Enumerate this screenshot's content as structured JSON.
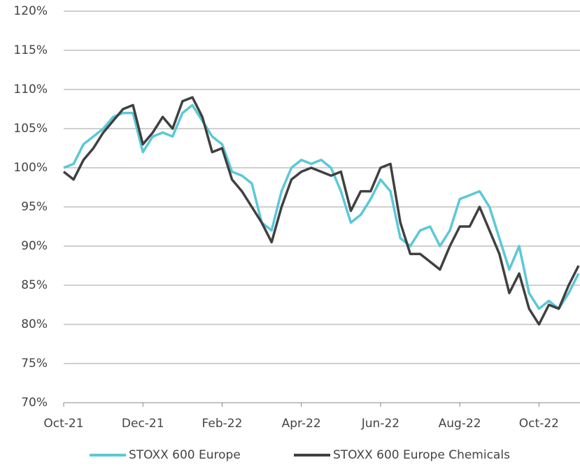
{
  "chart_data": {
    "type": "line",
    "categories": [
      "Oct-21",
      null,
      null,
      null,
      null,
      null,
      null,
      null,
      "Dec-21",
      null,
      null,
      null,
      null,
      null,
      null,
      null,
      "Feb-22",
      null,
      null,
      null,
      null,
      null,
      null,
      null,
      "Apr-22",
      null,
      null,
      null,
      null,
      null,
      null,
      null,
      "Jun-22",
      null,
      null,
      null,
      null,
      null,
      null,
      null,
      "Aug-22",
      null,
      null,
      null,
      null,
      null,
      null,
      null,
      "Oct-22",
      null,
      null,
      null,
      null
    ],
    "series": [
      {
        "name": "STOXX 600 Europe",
        "color": "#5bc8d8",
        "values": [
          100,
          100.5,
          103,
          104,
          105,
          106.5,
          107,
          107,
          102,
          104,
          104.5,
          104,
          107,
          108,
          106,
          104,
          103,
          99.5,
          99,
          98,
          93,
          92,
          97,
          100,
          101,
          100.5,
          101,
          100,
          97,
          93,
          94,
          96,
          98.5,
          97,
          91,
          90,
          92,
          92.5,
          90,
          92,
          96,
          96.5,
          97,
          95,
          91,
          87,
          90,
          84,
          82,
          83,
          82,
          84,
          86.5
        ]
      },
      {
        "name": "STOXX 600 Europe Chemicals",
        "color": "#404040",
        "values": [
          99.5,
          98.5,
          101,
          102.5,
          104.5,
          106,
          107.5,
          108,
          103,
          104.5,
          106.5,
          105,
          108.5,
          109,
          106.5,
          102,
          102.5,
          98.5,
          97,
          95,
          93,
          90.5,
          95,
          98.5,
          99.5,
          100,
          99.5,
          99,
          99.5,
          94.5,
          97,
          97,
          100,
          100.5,
          93,
          89,
          89,
          88,
          87,
          90,
          92.5,
          92.5,
          95,
          92,
          89,
          84,
          86.5,
          82,
          80,
          82.5,
          82,
          85,
          87.5
        ]
      }
    ],
    "ylim": [
      70,
      120
    ],
    "yticks": [
      {
        "value": 70,
        "label": "70%"
      },
      {
        "value": 75,
        "label": "75%"
      },
      {
        "value": 80,
        "label": "80%"
      },
      {
        "value": 85,
        "label": "85%"
      },
      {
        "value": 90,
        "label": "90%"
      },
      {
        "value": 95,
        "label": "95%"
      },
      {
        "value": 100,
        "label": "100%"
      },
      {
        "value": 105,
        "label": "105%"
      },
      {
        "value": 110,
        "label": "110%"
      },
      {
        "value": 115,
        "label": "115%"
      },
      {
        "value": 120,
        "label": "120%"
      }
    ],
    "grid": true,
    "legend": "bottom"
  }
}
